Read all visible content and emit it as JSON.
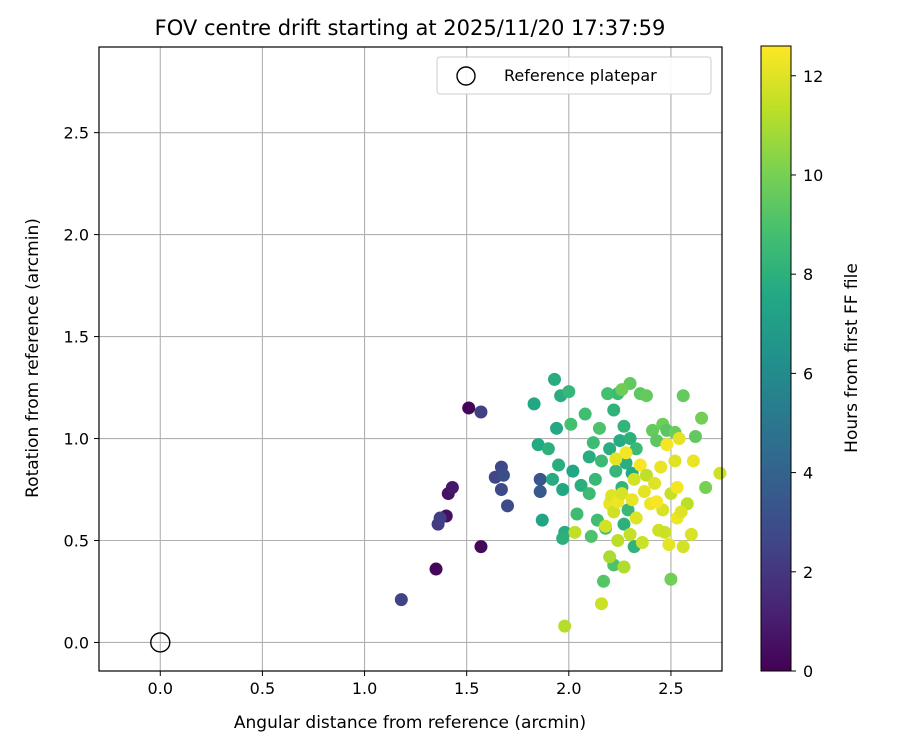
{
  "chart_data": {
    "type": "scatter",
    "title": "FOV centre drift starting at 2025/11/20 17:37:59",
    "xlabel": "Angular distance from reference (arcmin)",
    "ylabel": "Rotation from reference (arcmin)",
    "xlim": [
      -0.3,
      2.75
    ],
    "ylim": [
      -0.14,
      2.92
    ],
    "xticks": [
      0.0,
      0.5,
      1.0,
      1.5,
      2.0,
      2.5
    ],
    "xtick_labels": [
      "0.0",
      "0.5",
      "1.0",
      "1.5",
      "2.0",
      "2.5"
    ],
    "yticks": [
      0.0,
      0.5,
      1.0,
      1.5,
      2.0,
      2.5
    ],
    "ytick_labels": [
      "0.0",
      "0.5",
      "1.0",
      "1.5",
      "2.0",
      "2.5"
    ],
    "grid": true,
    "legend": {
      "position": "upper-right",
      "entries": [
        "Reference platepar"
      ]
    },
    "colormap": "viridis",
    "colorbar": {
      "label": "Hours from first FF file",
      "range": [
        0,
        12.6
      ],
      "ticks": [
        0,
        2,
        4,
        6,
        8,
        10,
        12
      ],
      "tick_labels": [
        "0",
        "2",
        "4",
        "6",
        "8",
        "10",
        "12"
      ]
    },
    "reference_point": {
      "label": "Reference platepar",
      "x": 0.0,
      "y": 0.0,
      "marker": "open-circle",
      "color": "#000000"
    },
    "points": [
      {
        "x": 1.51,
        "y": 1.15,
        "c": 0.1
      },
      {
        "x": 1.57,
        "y": 0.47,
        "c": 0.3
      },
      {
        "x": 1.35,
        "y": 0.36,
        "c": 0.2
      },
      {
        "x": 1.4,
        "y": 0.62,
        "c": 0.5
      },
      {
        "x": 1.41,
        "y": 0.73,
        "c": 0.6
      },
      {
        "x": 1.43,
        "y": 0.76,
        "c": 0.8
      },
      {
        "x": 1.57,
        "y": 1.13,
        "c": 2.4
      },
      {
        "x": 1.36,
        "y": 0.58,
        "c": 2.2
      },
      {
        "x": 1.37,
        "y": 0.61,
        "c": 2.3
      },
      {
        "x": 1.18,
        "y": 0.21,
        "c": 2.5
      },
      {
        "x": 1.64,
        "y": 0.81,
        "c": 2.6
      },
      {
        "x": 1.67,
        "y": 0.86,
        "c": 2.7
      },
      {
        "x": 1.67,
        "y": 0.75,
        "c": 2.8
      },
      {
        "x": 1.7,
        "y": 0.67,
        "c": 2.9
      },
      {
        "x": 1.68,
        "y": 0.82,
        "c": 3.0
      },
      {
        "x": 1.86,
        "y": 0.8,
        "c": 3.3
      },
      {
        "x": 1.86,
        "y": 0.74,
        "c": 3.5
      },
      {
        "x": 1.83,
        "y": 1.17,
        "c": 7.5
      },
      {
        "x": 1.85,
        "y": 0.97,
        "c": 7.6
      },
      {
        "x": 1.87,
        "y": 0.6,
        "c": 7.4
      },
      {
        "x": 1.9,
        "y": 0.95,
        "c": 8.0
      },
      {
        "x": 1.92,
        "y": 0.8,
        "c": 7.7
      },
      {
        "x": 1.93,
        "y": 1.29,
        "c": 7.8
      },
      {
        "x": 1.94,
        "y": 1.05,
        "c": 7.6
      },
      {
        "x": 1.95,
        "y": 0.87,
        "c": 7.9
      },
      {
        "x": 1.96,
        "y": 1.21,
        "c": 7.8
      },
      {
        "x": 1.97,
        "y": 0.75,
        "c": 7.5
      },
      {
        "x": 1.98,
        "y": 0.54,
        "c": 7.7
      },
      {
        "x": 1.97,
        "y": 0.51,
        "c": 8.0
      },
      {
        "x": 2.0,
        "y": 1.23,
        "c": 8.3
      },
      {
        "x": 2.01,
        "y": 1.07,
        "c": 8.8
      },
      {
        "x": 2.02,
        "y": 0.84,
        "c": 7.5
      },
      {
        "x": 2.04,
        "y": 0.63,
        "c": 8.6
      },
      {
        "x": 2.06,
        "y": 0.77,
        "c": 7.9
      },
      {
        "x": 2.08,
        "y": 1.12,
        "c": 8.7
      },
      {
        "x": 2.1,
        "y": 0.91,
        "c": 7.8
      },
      {
        "x": 2.1,
        "y": 0.73,
        "c": 8.5
      },
      {
        "x": 2.11,
        "y": 0.52,
        "c": 9.0
      },
      {
        "x": 2.12,
        "y": 0.98,
        "c": 8.6
      },
      {
        "x": 2.13,
        "y": 0.8,
        "c": 8.4
      },
      {
        "x": 2.14,
        "y": 0.6,
        "c": 8.7
      },
      {
        "x": 2.15,
        "y": 1.05,
        "c": 9.0
      },
      {
        "x": 2.16,
        "y": 0.89,
        "c": 8.5
      },
      {
        "x": 2.18,
        "y": 0.56,
        "c": 8.9
      },
      {
        "x": 2.19,
        "y": 1.22,
        "c": 8.8
      },
      {
        "x": 2.2,
        "y": 0.95,
        "c": 7.9
      },
      {
        "x": 2.21,
        "y": 0.7,
        "c": 8.0
      },
      {
        "x": 2.22,
        "y": 1.14,
        "c": 8.1
      },
      {
        "x": 2.23,
        "y": 0.84,
        "c": 8.3
      },
      {
        "x": 2.24,
        "y": 1.22,
        "c": 8.6
      },
      {
        "x": 2.25,
        "y": 0.99,
        "c": 7.7
      },
      {
        "x": 2.26,
        "y": 0.76,
        "c": 8.2
      },
      {
        "x": 2.27,
        "y": 0.58,
        "c": 8.0
      },
      {
        "x": 2.27,
        "y": 1.06,
        "c": 8.2
      },
      {
        "x": 2.28,
        "y": 0.88,
        "c": 7.9
      },
      {
        "x": 2.29,
        "y": 0.65,
        "c": 8.4
      },
      {
        "x": 2.3,
        "y": 1.0,
        "c": 8.0
      },
      {
        "x": 2.31,
        "y": 0.83,
        "c": 7.6
      },
      {
        "x": 2.32,
        "y": 0.47,
        "c": 8.1
      },
      {
        "x": 2.33,
        "y": 0.95,
        "c": 8.5
      },
      {
        "x": 2.17,
        "y": 0.3,
        "c": 9.2
      },
      {
        "x": 2.22,
        "y": 0.38,
        "c": 9.0
      },
      {
        "x": 2.3,
        "y": 1.27,
        "c": 9.5
      },
      {
        "x": 2.35,
        "y": 1.22,
        "c": 9.4
      },
      {
        "x": 2.38,
        "y": 1.21,
        "c": 9.6
      },
      {
        "x": 2.26,
        "y": 1.24,
        "c": 9.8
      },
      {
        "x": 2.41,
        "y": 1.04,
        "c": 9.6
      },
      {
        "x": 2.43,
        "y": 0.99,
        "c": 9.4
      },
      {
        "x": 2.46,
        "y": 1.07,
        "c": 9.8
      },
      {
        "x": 2.48,
        "y": 1.04,
        "c": 9.3
      },
      {
        "x": 2.52,
        "y": 1.03,
        "c": 9.7
      },
      {
        "x": 2.56,
        "y": 1.21,
        "c": 9.6
      },
      {
        "x": 2.62,
        "y": 1.01,
        "c": 9.5
      },
      {
        "x": 2.65,
        "y": 1.1,
        "c": 9.9
      },
      {
        "x": 2.67,
        "y": 0.76,
        "c": 10.0
      },
      {
        "x": 2.5,
        "y": 0.31,
        "c": 9.9
      },
      {
        "x": 1.98,
        "y": 0.08,
        "c": 11.2
      },
      {
        "x": 2.16,
        "y": 0.19,
        "c": 11.6
      },
      {
        "x": 2.2,
        "y": 0.42,
        "c": 11.0
      },
      {
        "x": 2.24,
        "y": 0.5,
        "c": 11.3
      },
      {
        "x": 2.27,
        "y": 0.37,
        "c": 11.1
      },
      {
        "x": 2.03,
        "y": 0.54,
        "c": 11.4
      },
      {
        "x": 2.18,
        "y": 0.57,
        "c": 11.8
      },
      {
        "x": 2.2,
        "y": 0.68,
        "c": 12.2
      },
      {
        "x": 2.21,
        "y": 0.72,
        "c": 12.0
      },
      {
        "x": 2.22,
        "y": 0.64,
        "c": 11.7
      },
      {
        "x": 2.23,
        "y": 0.9,
        "c": 12.1
      },
      {
        "x": 2.24,
        "y": 0.69,
        "c": 12.3
      },
      {
        "x": 2.26,
        "y": 0.73,
        "c": 11.9
      },
      {
        "x": 2.28,
        "y": 0.93,
        "c": 12.4
      },
      {
        "x": 2.3,
        "y": 0.53,
        "c": 11.5
      },
      {
        "x": 2.31,
        "y": 0.7,
        "c": 12.2
      },
      {
        "x": 2.32,
        "y": 0.8,
        "c": 11.8
      },
      {
        "x": 2.33,
        "y": 0.61,
        "c": 12.0
      },
      {
        "x": 2.35,
        "y": 0.87,
        "c": 12.5
      },
      {
        "x": 2.36,
        "y": 0.49,
        "c": 11.6
      },
      {
        "x": 2.37,
        "y": 0.74,
        "c": 12.1
      },
      {
        "x": 2.38,
        "y": 0.82,
        "c": 11.4
      },
      {
        "x": 2.4,
        "y": 0.68,
        "c": 12.3
      },
      {
        "x": 2.42,
        "y": 0.78,
        "c": 12.0
      },
      {
        "x": 2.44,
        "y": 0.55,
        "c": 11.7
      },
      {
        "x": 2.45,
        "y": 0.86,
        "c": 12.2
      },
      {
        "x": 2.46,
        "y": 0.65,
        "c": 11.9
      },
      {
        "x": 2.48,
        "y": 0.97,
        "c": 12.4
      },
      {
        "x": 2.49,
        "y": 0.48,
        "c": 12.1
      },
      {
        "x": 2.5,
        "y": 0.73,
        "c": 11.5
      },
      {
        "x": 2.52,
        "y": 0.89,
        "c": 12.0
      },
      {
        "x": 2.53,
        "y": 0.61,
        "c": 12.3
      },
      {
        "x": 2.54,
        "y": 1.0,
        "c": 12.1
      },
      {
        "x": 2.56,
        "y": 0.47,
        "c": 11.8
      },
      {
        "x": 2.58,
        "y": 0.68,
        "c": 11.3
      },
      {
        "x": 2.6,
        "y": 0.53,
        "c": 11.9
      },
      {
        "x": 2.61,
        "y": 0.89,
        "c": 12.2
      },
      {
        "x": 2.74,
        "y": 0.83,
        "c": 11.7
      },
      {
        "x": 2.53,
        "y": 0.76,
        "c": 12.4
      },
      {
        "x": 2.55,
        "y": 0.64,
        "c": 12.0
      },
      {
        "x": 2.47,
        "y": 0.54,
        "c": 11.6
      },
      {
        "x": 2.43,
        "y": 0.69,
        "c": 12.5
      }
    ]
  }
}
